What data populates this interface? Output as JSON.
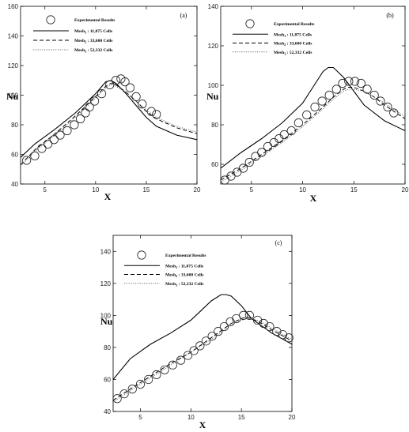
{
  "chart_data": [
    {
      "type": "line",
      "panel_label": "(a)",
      "xlabel": "X",
      "ylabel": "Nu",
      "xlim": [
        2.6,
        20
      ],
      "ylim": [
        40,
        160
      ],
      "xticks": [
        "5",
        "10",
        "15",
        "20"
      ],
      "xtick_values": [
        5,
        10,
        15,
        20
      ],
      "yticks": [
        "40",
        "60",
        "80",
        "100",
        "120",
        "140",
        "160"
      ],
      "ytick_values": [
        40,
        60,
        80,
        100,
        120,
        140,
        160
      ],
      "legend_position": "top",
      "legend_marker_label": "Experimental Results",
      "experimental": {
        "x": [
          3.2,
          4.0,
          4.7,
          5.3,
          5.9,
          6.5,
          7.2,
          7.9,
          8.5,
          9.0,
          9.4,
          9.9,
          10.6,
          11.4,
          12.0,
          12.5,
          12.9,
          13.4,
          14.0,
          14.6,
          15.5,
          16.0
        ],
        "y": [
          56,
          59,
          64,
          67,
          70,
          73,
          76,
          80,
          84,
          88,
          92,
          96,
          101,
          107,
          110,
          111,
          109,
          105,
          99,
          94,
          89,
          87
        ]
      },
      "series": [
        {
          "name": "Mesh1 : 11,875 Cells",
          "style": "solid",
          "x": [
            2.6,
            4,
            6,
            8,
            10,
            11,
            11.5,
            12,
            13,
            14,
            15,
            16,
            18,
            20
          ],
          "y": [
            58,
            67,
            77,
            88,
            101,
            109,
            110,
            108,
            101,
            93,
            85,
            79,
            73,
            70
          ]
        },
        {
          "name": "Mesh2 : 33,600 Cells",
          "style": "dashed",
          "x": [
            2.6,
            4,
            6,
            8,
            10,
            11,
            11.5,
            12,
            13,
            14,
            15,
            16,
            18,
            20
          ],
          "y": [
            53,
            63,
            74,
            86,
            99,
            106,
            108,
            107,
            102,
            96,
            89,
            84,
            78,
            74
          ]
        },
        {
          "name": "Mesh3 : 52,332 Cells",
          "style": "dotted",
          "x": [
            2.6,
            4,
            6,
            8,
            10,
            11,
            11.5,
            12,
            13,
            14,
            15,
            16,
            18,
            20
          ],
          "y": [
            52,
            62,
            73,
            85,
            98,
            105,
            107,
            106,
            102,
            96,
            90,
            85,
            79,
            75
          ]
        }
      ]
    },
    {
      "type": "line",
      "panel_label": "(b)",
      "xlabel": "X",
      "ylabel": "Nu",
      "xlim": [
        2,
        20
      ],
      "ylim": [
        50,
        140
      ],
      "xticks": [
        "5",
        "10",
        "15",
        "20"
      ],
      "xtick_values": [
        5,
        10,
        15,
        20
      ],
      "yticks": [
        "60",
        "80",
        "100",
        "120",
        "140"
      ],
      "ytick_values": [
        60,
        80,
        100,
        120,
        140
      ],
      "legend_position": "top",
      "legend_marker_label": "Experimental Results",
      "experimental": {
        "x": [
          2.4,
          3.0,
          3.6,
          4.2,
          4.8,
          5.4,
          6.0,
          6.6,
          7.2,
          7.7,
          8.2,
          8.9,
          9.6,
          10.4,
          11.2,
          11.9,
          12.6,
          13.3,
          13.9,
          14.5,
          15.1,
          15.7,
          16.3,
          17.0,
          17.6,
          18.3,
          18.9
        ],
        "y": [
          52,
          54,
          56,
          58,
          61,
          64,
          66,
          69,
          71,
          73,
          75,
          77,
          81,
          85,
          89,
          92,
          95,
          98,
          101,
          102,
          102,
          101,
          98,
          95,
          92,
          89,
          86
        ]
      },
      "series": [
        {
          "name": "Mesh1 : 11,875 Cells",
          "style": "solid",
          "x": [
            2,
            4,
            6,
            8,
            10,
            11,
            12,
            12.5,
            13,
            14,
            15,
            16,
            18,
            20
          ],
          "y": [
            58,
            66,
            73,
            81,
            91,
            99,
            107,
            109,
            109,
            104,
            97,
            90,
            82,
            77
          ]
        },
        {
          "name": "Mesh2 : 33,600 Cells",
          "style": "dashed",
          "x": [
            2,
            4,
            6,
            8,
            10,
            12,
            13,
            14,
            14.5,
            15,
            16,
            17,
            18,
            20
          ],
          "y": [
            52,
            58,
            65,
            72,
            80,
            89,
            94,
            98,
            99,
            99,
            97,
            94,
            90,
            83
          ]
        },
        {
          "name": "Mesh3 : 52,332 Cells",
          "style": "dotted",
          "x": [
            2,
            4,
            6,
            8,
            10,
            12,
            13,
            14,
            14.5,
            15,
            16,
            17,
            18,
            20
          ],
          "y": [
            51,
            57,
            64,
            71,
            79,
            88,
            93,
            97,
            98,
            98,
            97,
            94,
            91,
            84
          ]
        }
      ]
    },
    {
      "type": "line",
      "panel_label": "(c)",
      "xlabel": "X",
      "ylabel": "Nu",
      "xlim": [
        2.3,
        20
      ],
      "ylim": [
        40,
        150
      ],
      "xticks": [
        "5",
        "10",
        "15",
        "20"
      ],
      "xtick_values": [
        5,
        10,
        15,
        20
      ],
      "yticks": [
        "40",
        "60",
        "80",
        "100",
        "120",
        "140"
      ],
      "ytick_values": [
        40,
        60,
        80,
        100,
        120,
        140
      ],
      "legend_position": "top",
      "legend_marker_label": "Experimental Results",
      "experimental": {
        "x": [
          2.7,
          3.4,
          4.2,
          5.0,
          5.8,
          6.6,
          7.4,
          8.2,
          9.0,
          9.7,
          10.3,
          10.9,
          11.5,
          12.1,
          12.7,
          13.3,
          13.9,
          14.5,
          15.2,
          15.8,
          16.6,
          17.2,
          17.8,
          18.5,
          19.1,
          19.7
        ],
        "y": [
          48,
          51,
          54,
          57,
          60,
          63,
          66,
          69,
          72,
          75,
          78,
          81,
          84,
          87,
          90,
          93,
          96,
          98,
          100,
          100,
          97,
          95,
          93,
          90,
          88,
          86
        ]
      },
      "series": [
        {
          "name": "Mesh1 : 11,875 Cells",
          "style": "solid",
          "x": [
            2.3,
            4,
            6,
            8,
            10,
            11,
            12,
            13,
            13.5,
            14,
            15,
            16,
            18,
            20
          ],
          "y": [
            60,
            73,
            82,
            89,
            97,
            103,
            109,
            113,
            113,
            112,
            106,
            98,
            89,
            82
          ]
        },
        {
          "name": "Mesh2 : 33,600 Cells",
          "style": "dashed",
          "x": [
            2.3,
            4,
            6,
            8,
            10,
            12,
            14,
            15,
            15.5,
            16,
            17,
            18,
            20
          ],
          "y": [
            47,
            54,
            62,
            70,
            77,
            86,
            95,
            98,
            99,
            98,
            95,
            91,
            84
          ]
        },
        {
          "name": "Mesh3 : 52,332 Cells",
          "style": "dotted",
          "x": [
            2.3,
            4,
            6,
            8,
            10,
            12,
            14,
            15,
            15.5,
            16,
            17,
            18,
            20
          ],
          "y": [
            46,
            53,
            61,
            69,
            77,
            85,
            94,
            97,
            98,
            98,
            96,
            92,
            85
          ]
        }
      ]
    }
  ]
}
